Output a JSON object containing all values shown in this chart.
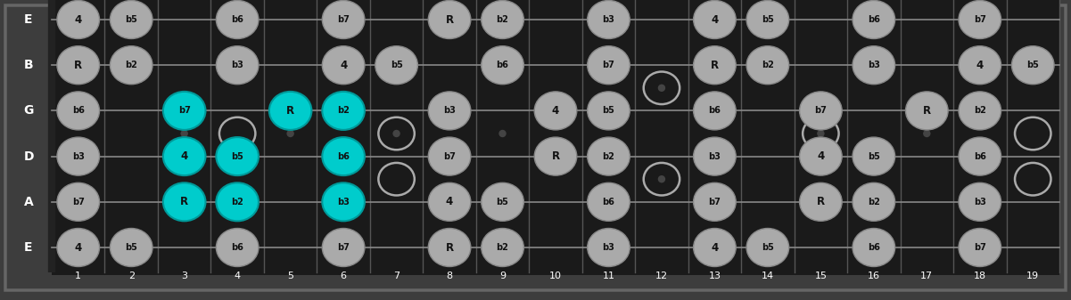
{
  "background_color": "#3d3d3d",
  "fretboard_color": "#1a1a1a",
  "fret_color": "#555555",
  "string_color": "#888888",
  "nut_color": "#111111",
  "note_gray_face": "#aaaaaa",
  "note_gray_edge": "#888888",
  "note_cyan_face": "#00cccc",
  "note_cyan_edge": "#009999",
  "note_text_color": "#111111",
  "label_color": "#ffffff",
  "open_circle_color": "#aaaaaa",
  "num_frets": 19,
  "strings": [
    "E",
    "B",
    "G",
    "D",
    "A",
    "E"
  ],
  "fret_dot_frets": [
    3,
    5,
    7,
    9,
    12,
    15,
    17
  ],
  "fret_dot_double": [
    12
  ],
  "notes": [
    {
      "string": 0,
      "fret": 1,
      "label": "4",
      "type": "gray"
    },
    {
      "string": 0,
      "fret": 2,
      "label": "b5",
      "type": "gray"
    },
    {
      "string": 0,
      "fret": 4,
      "label": "b6",
      "type": "gray"
    },
    {
      "string": 0,
      "fret": 6,
      "label": "b7",
      "type": "gray"
    },
    {
      "string": 0,
      "fret": 8,
      "label": "R",
      "type": "gray"
    },
    {
      "string": 0,
      "fret": 9,
      "label": "b2",
      "type": "gray"
    },
    {
      "string": 0,
      "fret": 11,
      "label": "b3",
      "type": "gray"
    },
    {
      "string": 0,
      "fret": 13,
      "label": "4",
      "type": "gray"
    },
    {
      "string": 0,
      "fret": 14,
      "label": "b5",
      "type": "gray"
    },
    {
      "string": 0,
      "fret": 16,
      "label": "b6",
      "type": "gray"
    },
    {
      "string": 0,
      "fret": 18,
      "label": "b7",
      "type": "gray"
    },
    {
      "string": 1,
      "fret": 1,
      "label": "R",
      "type": "gray"
    },
    {
      "string": 1,
      "fret": 2,
      "label": "b2",
      "type": "gray"
    },
    {
      "string": 1,
      "fret": 4,
      "label": "b3",
      "type": "gray"
    },
    {
      "string": 1,
      "fret": 6,
      "label": "4",
      "type": "gray"
    },
    {
      "string": 1,
      "fret": 7,
      "label": "b5",
      "type": "gray"
    },
    {
      "string": 1,
      "fret": 9,
      "label": "b6",
      "type": "gray"
    },
    {
      "string": 1,
      "fret": 11,
      "label": "b7",
      "type": "gray"
    },
    {
      "string": 1,
      "fret": 13,
      "label": "R",
      "type": "gray"
    },
    {
      "string": 1,
      "fret": 14,
      "label": "b2",
      "type": "gray"
    },
    {
      "string": 1,
      "fret": 16,
      "label": "b3",
      "type": "gray"
    },
    {
      "string": 1,
      "fret": 18,
      "label": "4",
      "type": "gray"
    },
    {
      "string": 1,
      "fret": 19,
      "label": "b5",
      "type": "gray"
    },
    {
      "string": 2,
      "fret": 1,
      "label": "b6",
      "type": "gray"
    },
    {
      "string": 2,
      "fret": 3,
      "label": "b7",
      "type": "cyan"
    },
    {
      "string": 2,
      "fret": 5,
      "label": "R",
      "type": "cyan"
    },
    {
      "string": 2,
      "fret": 6,
      "label": "b2",
      "type": "cyan"
    },
    {
      "string": 2,
      "fret": 8,
      "label": "b3",
      "type": "gray"
    },
    {
      "string": 2,
      "fret": 10,
      "label": "4",
      "type": "gray"
    },
    {
      "string": 2,
      "fret": 11,
      "label": "b5",
      "type": "gray"
    },
    {
      "string": 2,
      "fret": 13,
      "label": "b6",
      "type": "gray"
    },
    {
      "string": 2,
      "fret": 15,
      "label": "b7",
      "type": "gray"
    },
    {
      "string": 2,
      "fret": 17,
      "label": "R",
      "type": "gray"
    },
    {
      "string": 2,
      "fret": 18,
      "label": "b2",
      "type": "gray"
    },
    {
      "string": 3,
      "fret": 1,
      "label": "b3",
      "type": "gray"
    },
    {
      "string": 3,
      "fret": 3,
      "label": "4",
      "type": "cyan"
    },
    {
      "string": 3,
      "fret": 4,
      "label": "b5",
      "type": "cyan"
    },
    {
      "string": 3,
      "fret": 6,
      "label": "b6",
      "type": "cyan"
    },
    {
      "string": 3,
      "fret": 8,
      "label": "b7",
      "type": "gray"
    },
    {
      "string": 3,
      "fret": 10,
      "label": "R",
      "type": "gray"
    },
    {
      "string": 3,
      "fret": 11,
      "label": "b2",
      "type": "gray"
    },
    {
      "string": 3,
      "fret": 13,
      "label": "b3",
      "type": "gray"
    },
    {
      "string": 3,
      "fret": 15,
      "label": "4",
      "type": "gray"
    },
    {
      "string": 3,
      "fret": 16,
      "label": "b5",
      "type": "gray"
    },
    {
      "string": 3,
      "fret": 18,
      "label": "b6",
      "type": "gray"
    },
    {
      "string": 4,
      "fret": 1,
      "label": "b7",
      "type": "gray"
    },
    {
      "string": 4,
      "fret": 3,
      "label": "R",
      "type": "cyan"
    },
    {
      "string": 4,
      "fret": 4,
      "label": "b2",
      "type": "cyan"
    },
    {
      "string": 4,
      "fret": 6,
      "label": "b3",
      "type": "cyan"
    },
    {
      "string": 4,
      "fret": 8,
      "label": "4",
      "type": "gray"
    },
    {
      "string": 4,
      "fret": 9,
      "label": "b5",
      "type": "gray"
    },
    {
      "string": 4,
      "fret": 11,
      "label": "b6",
      "type": "gray"
    },
    {
      "string": 4,
      "fret": 13,
      "label": "b7",
      "type": "gray"
    },
    {
      "string": 4,
      "fret": 15,
      "label": "R",
      "type": "gray"
    },
    {
      "string": 4,
      "fret": 16,
      "label": "b2",
      "type": "gray"
    },
    {
      "string": 4,
      "fret": 18,
      "label": "b3",
      "type": "gray"
    },
    {
      "string": 5,
      "fret": 1,
      "label": "4",
      "type": "gray"
    },
    {
      "string": 5,
      "fret": 2,
      "label": "b5",
      "type": "gray"
    },
    {
      "string": 5,
      "fret": 4,
      "label": "b6",
      "type": "gray"
    },
    {
      "string": 5,
      "fret": 6,
      "label": "b7",
      "type": "gray"
    },
    {
      "string": 5,
      "fret": 8,
      "label": "R",
      "type": "gray"
    },
    {
      "string": 5,
      "fret": 9,
      "label": "b2",
      "type": "gray"
    },
    {
      "string": 5,
      "fret": 11,
      "label": "b3",
      "type": "gray"
    },
    {
      "string": 5,
      "fret": 13,
      "label": "4",
      "type": "gray"
    },
    {
      "string": 5,
      "fret": 14,
      "label": "b5",
      "type": "gray"
    },
    {
      "string": 5,
      "fret": 16,
      "label": "b6",
      "type": "gray"
    },
    {
      "string": 5,
      "fret": 18,
      "label": "b7",
      "type": "gray"
    }
  ],
  "open_circles": [
    {
      "string": 2,
      "fret": 4,
      "between_strings": [
        2,
        3
      ]
    },
    {
      "string": 2,
      "fret": 7,
      "between_strings": [
        2,
        3
      ]
    },
    {
      "string": 2,
      "fret": 12,
      "between_strings": [
        1,
        2
      ]
    },
    {
      "string": 2,
      "fret": 19,
      "between_strings": [
        2,
        3
      ]
    },
    {
      "string": 3,
      "fret": 7,
      "between_strings": [
        3,
        4
      ]
    },
    {
      "string": 3,
      "fret": 12,
      "between_strings": [
        3,
        4
      ]
    },
    {
      "string": 3,
      "fret": 15,
      "between_strings": [
        2,
        3
      ]
    },
    {
      "string": 3,
      "fret": 19,
      "between_strings": [
        3,
        4
      ]
    }
  ]
}
